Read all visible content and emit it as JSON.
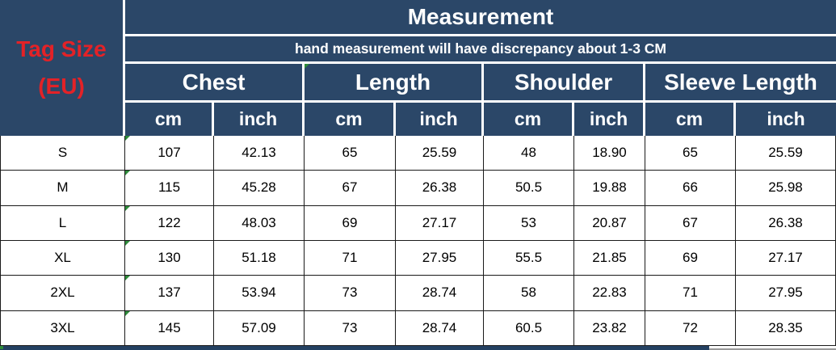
{
  "colors": {
    "header_bg": "#2b4768",
    "tag_size_text": "#e32227",
    "header_text": "#ffffff",
    "data_text": "#000000",
    "grid_border": "#1a1a1a",
    "flag_green": "#2e8b3a"
  },
  "chart_data": {
    "type": "table",
    "title": "Measurement",
    "note": "hand measurement will have discrepancy about 1-3 CM",
    "row_header": "Tag Size (EU)",
    "row_header_lines": [
      "Tag Size",
      "(EU)"
    ],
    "column_groups": [
      "Chest",
      "Length",
      "Shoulder",
      "Sleeve Length"
    ],
    "unit_labels": [
      "cm",
      "inch",
      "cm",
      "inch",
      "cm",
      "inch",
      "cm",
      "inch"
    ],
    "columns": [
      "Chest cm",
      "Chest inch",
      "Length cm",
      "Length inch",
      "Shoulder cm",
      "Shoulder inch",
      "Sleeve Length cm",
      "Sleeve Length inch"
    ],
    "rows": [
      {
        "size": "S",
        "cells": [
          "107",
          "42.13",
          "65",
          "25.59",
          "48",
          "18.90",
          "65",
          "25.59"
        ]
      },
      {
        "size": "M",
        "cells": [
          "115",
          "45.28",
          "67",
          "26.38",
          "50.5",
          "19.88",
          "66",
          "25.98"
        ]
      },
      {
        "size": "L",
        "cells": [
          "122",
          "48.03",
          "69",
          "27.17",
          "53",
          "20.87",
          "67",
          "26.38"
        ]
      },
      {
        "size": "XL",
        "cells": [
          "130",
          "51.18",
          "71",
          "27.95",
          "55.5",
          "21.85",
          "69",
          "27.17"
        ]
      },
      {
        "size": "2XL",
        "cells": [
          "137",
          "53.94",
          "73",
          "28.74",
          "58",
          "22.83",
          "71",
          "27.95"
        ]
      },
      {
        "size": "3XL",
        "cells": [
          "145",
          "57.09",
          "73",
          "28.74",
          "60.5",
          "23.82",
          "72",
          "28.35"
        ]
      }
    ]
  }
}
